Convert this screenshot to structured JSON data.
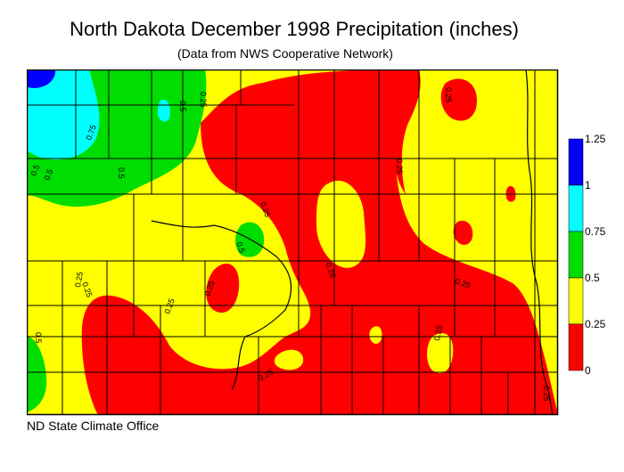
{
  "title": "North Dakota December 1998 Precipitation (inches)",
  "subtitle": "(Data from NWS Cooperative Network)",
  "credit": "ND State Climate Office",
  "legend": {
    "ticks": [
      "1.25",
      "1",
      "0.75",
      "0.5",
      "0.25",
      "0"
    ],
    "bands": [
      {
        "range": "1 - 1.25",
        "color": "#0000ff"
      },
      {
        "range": "0.75 - 1",
        "color": "#00ffff"
      },
      {
        "range": "0.5 - 0.75",
        "color": "#00dd00"
      },
      {
        "range": "0.25 - 0.5",
        "color": "#ffff00"
      },
      {
        "range": "0 - 0.25",
        "color": "#ff0000"
      }
    ]
  },
  "contour_labels": [
    "0.5",
    "0.25",
    "0.75",
    "0.5",
    "0.5",
    "0.5",
    "0.25",
    "0.5",
    "0.25",
    "0.25",
    "0.25",
    "0.25",
    "0.25",
    "0.25",
    "0.5",
    "0.25",
    "0.25",
    "0.25",
    "0.25",
    "0.25"
  ]
}
